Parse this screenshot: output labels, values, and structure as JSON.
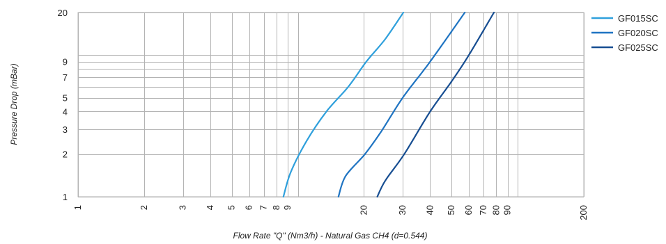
{
  "chart_data": {
    "type": "line",
    "xscale": "log",
    "yscale": "log",
    "xlabel": "Flow Rate \"Q\" (Nm3/h) - Natural Gas CH4 (d=0.544)",
    "ylabel": "Pressure Drop (mBar)",
    "xlim": [
      1,
      200
    ],
    "ylim": [
      1,
      20
    ],
    "grid": true,
    "legend_position": "right",
    "x_grid": [
      1,
      2,
      3,
      4,
      5,
      6,
      7,
      8,
      9,
      10,
      20,
      30,
      40,
      50,
      60,
      70,
      80,
      90,
      100,
      200
    ],
    "y_grid": [
      1,
      2,
      3,
      4,
      5,
      6,
      7,
      8,
      9,
      10,
      20
    ],
    "x_tick_labels": [
      {
        "value": 1,
        "label": "1"
      },
      {
        "value": 2,
        "label": "2"
      },
      {
        "value": 3,
        "label": "3"
      },
      {
        "value": 4,
        "label": "4"
      },
      {
        "value": 5,
        "label": "5"
      },
      {
        "value": 6,
        "label": "6"
      },
      {
        "value": 7,
        "label": "7"
      },
      {
        "value": 8,
        "label": "8"
      },
      {
        "value": 9,
        "label": "9"
      },
      {
        "value": 20,
        "label": "20"
      },
      {
        "value": 30,
        "label": "30"
      },
      {
        "value": 40,
        "label": "40"
      },
      {
        "value": 50,
        "label": "50"
      },
      {
        "value": 60,
        "label": "60"
      },
      {
        "value": 70,
        "label": "70"
      },
      {
        "value": 80,
        "label": "80"
      },
      {
        "value": 90,
        "label": "90"
      },
      {
        "value": 200,
        "label": "200"
      }
    ],
    "y_tick_labels": [
      {
        "value": 1,
        "label": "1"
      },
      {
        "value": 2,
        "label": "2"
      },
      {
        "value": 3,
        "label": "3"
      },
      {
        "value": 4,
        "label": "4"
      },
      {
        "value": 5,
        "label": "5"
      },
      {
        "value": 7,
        "label": "7"
      },
      {
        "value": 9,
        "label": "9"
      },
      {
        "value": 20,
        "label": "20"
      }
    ],
    "series": [
      {
        "name": "GF015SC",
        "color": "#2fa0dc",
        "x": [
          8.6,
          9.3,
          11,
          13.5,
          17,
          20.5,
          25,
          30.2
        ],
        "y": [
          1,
          1.5,
          2.5,
          4,
          6,
          9,
          13,
          20
        ]
      },
      {
        "name": "GF020SC",
        "color": "#1f74c2",
        "x": [
          15.3,
          16.5,
          20.2,
          24,
          30,
          40,
          57.5
        ],
        "y": [
          1,
          1.4,
          2,
          2.9,
          5,
          9,
          20
        ]
      },
      {
        "name": "GF025SC",
        "color": "#174e92",
        "x": [
          23,
          25,
          30.5,
          40,
          50,
          60,
          78
        ],
        "y": [
          1,
          1.3,
          2,
          4,
          6.5,
          10,
          20
        ]
      }
    ]
  }
}
